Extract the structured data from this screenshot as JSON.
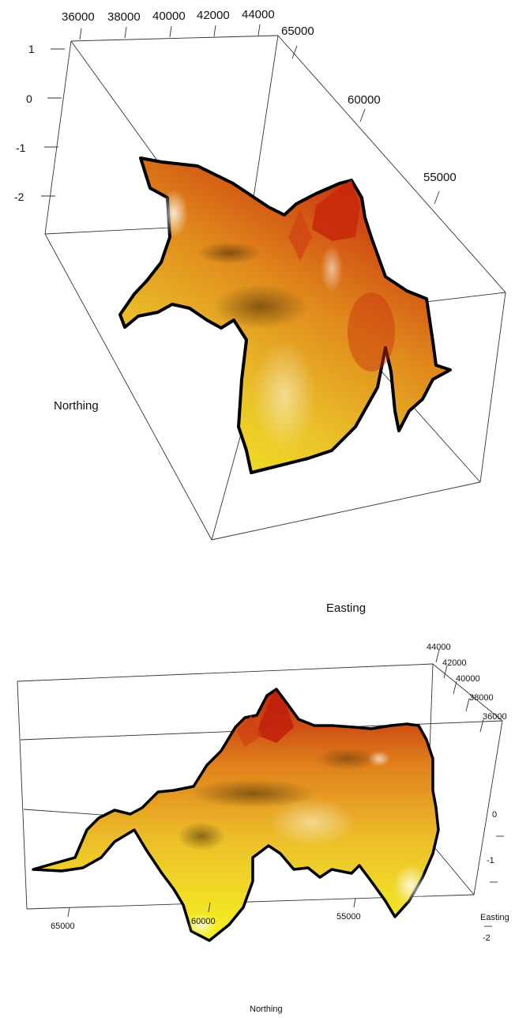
{
  "chart_data": [
    {
      "type": "surface3d",
      "xlabel": "Easting",
      "ylabel": "Northing",
      "zlabel": "",
      "easting_ticks": [
        "36000",
        "38000",
        "40000",
        "42000",
        "44000"
      ],
      "northing_ticks": [
        "65000",
        "60000",
        "55000"
      ],
      "z_ticks": [
        "1",
        "0",
        "-1",
        "-2"
      ],
      "easting_range": [
        35000,
        45000
      ],
      "northing_range": [
        52000,
        66000
      ],
      "z_range": [
        -2.6,
        1.2
      ],
      "surface_colors": [
        "#f2f21a",
        "#e8a81e",
        "#d96a14",
        "#c02a0e"
      ],
      "peak": {
        "easting": 41000,
        "northing": 58000,
        "z": 0.9
      },
      "grid": false
    },
    {
      "type": "surface3d",
      "xlabel": "Northing",
      "ylabel": "Easting",
      "zlabel": "",
      "easting_ticks": [
        "44000",
        "42000",
        "40000",
        "38000",
        "36000"
      ],
      "northing_ticks": [
        "65000",
        "60000",
        "55000"
      ],
      "z_ticks": [
        "0",
        "-1",
        "-2"
      ],
      "easting_range": [
        35000,
        45000
      ],
      "northing_range": [
        52000,
        66000
      ],
      "z_range": [
        -2.6,
        1.2
      ],
      "surface_colors": [
        "#f2f21a",
        "#e8a81e",
        "#d96a14",
        "#c02a0e"
      ],
      "grid": false
    }
  ]
}
